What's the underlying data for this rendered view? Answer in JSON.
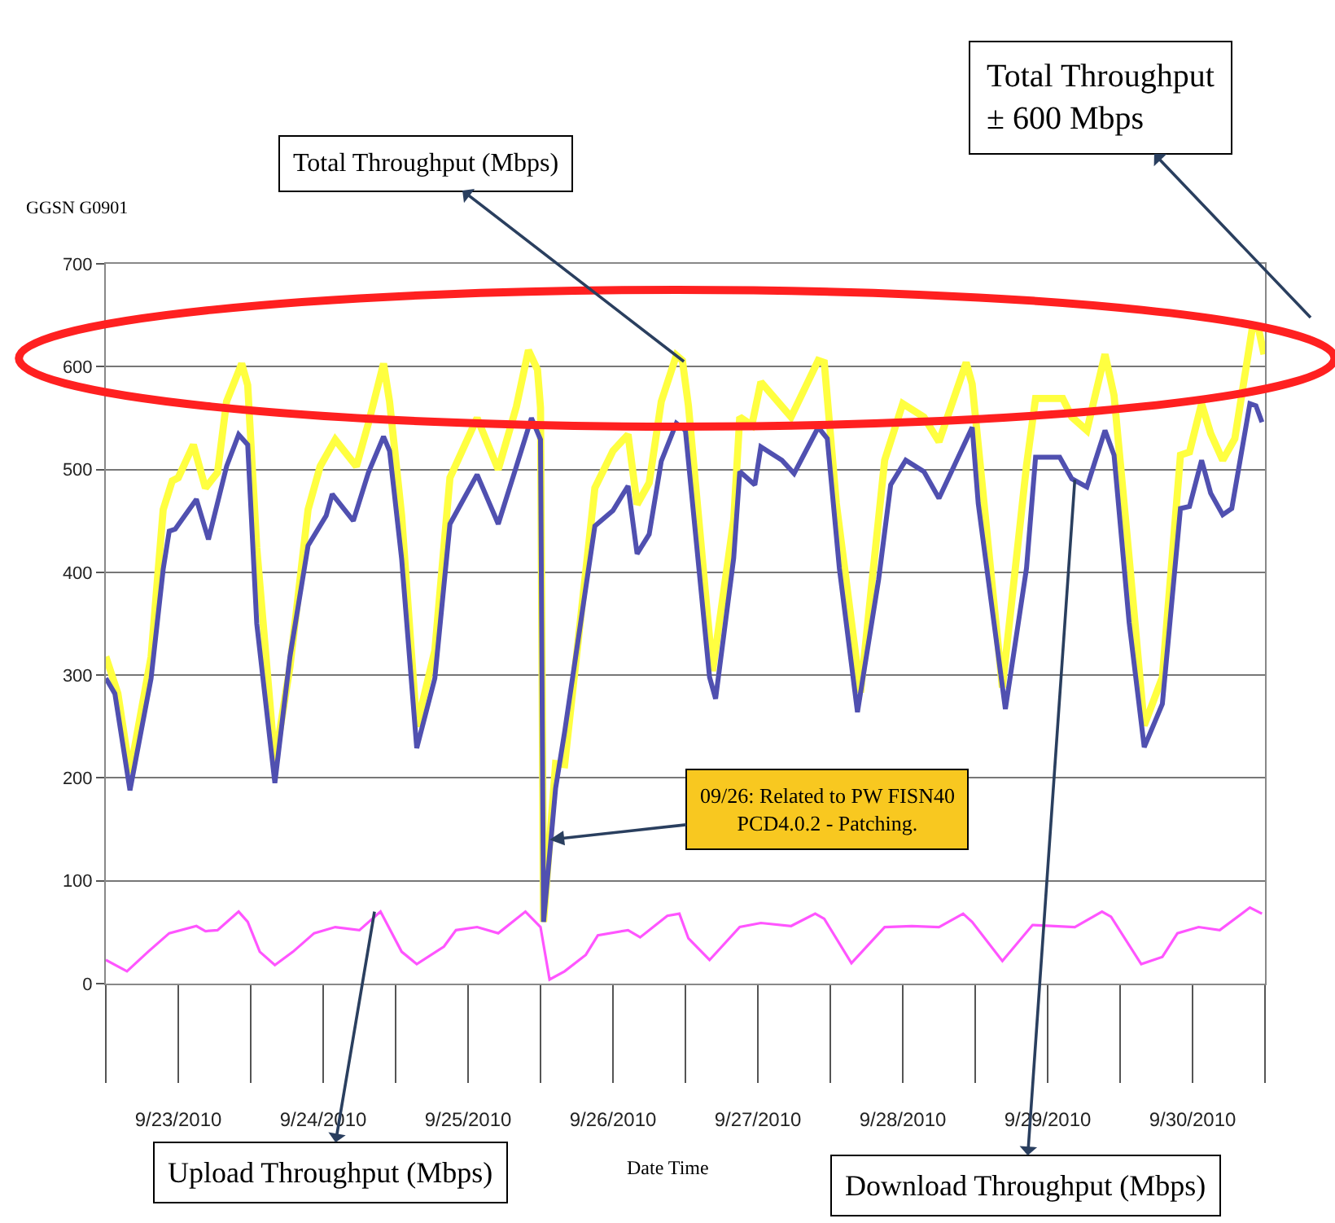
{
  "chart_data": {
    "type": "line",
    "title": "GGSN G0901",
    "xlabel": "Date Time",
    "xlim": [
      "2010-09-23T00:00",
      "2010-10-01T00:00"
    ],
    "ylim": [
      0,
      700
    ],
    "yticks": [
      0,
      100,
      200,
      300,
      400,
      500,
      600,
      700
    ],
    "grid": "y",
    "xticks": [
      {
        "value": "2010-09-23T12:00",
        "label": "9/23/2010"
      },
      {
        "value": "2010-09-24T12:00",
        "label": "9/24/2010"
      },
      {
        "value": "2010-09-25T12:00",
        "label": "9/25/2010"
      },
      {
        "value": "2010-09-26T12:00",
        "label": "9/26/2010"
      },
      {
        "value": "2010-09-27T12:00",
        "label": "9/27/2010"
      },
      {
        "value": "2010-09-28T12:00",
        "label": "9/28/2010"
      },
      {
        "value": "2010-09-29T12:00",
        "label": "9/29/2010"
      },
      {
        "value": "2010-09-30T12:00",
        "label": "9/30/2010"
      }
    ],
    "series": [
      {
        "color": "#ffff40",
        "x": [
          "2010-09-23T00:00",
          "2010-09-23T02:00",
          "2010-09-23T04:00",
          "2010-09-23T07:30",
          "2010-09-23T09:30",
          "2010-09-23T11:00",
          "2010-09-23T12:00",
          "2010-09-23T14:30",
          "2010-09-23T16:30",
          "2010-09-23T18:30",
          "2010-09-23T20:00",
          "2010-09-23T22:30",
          "2010-09-23T23:30",
          "2010-09-24T01:00",
          "2010-09-24T04:00",
          "2010-09-24T06:30",
          "2010-09-24T09:30",
          "2010-09-24T11:30",
          "2010-09-24T14:00",
          "2010-09-24T17:30",
          "2010-09-24T19:30",
          "2010-09-24T22:00",
          "2010-09-24T23:00",
          "2010-09-25T01:00",
          "2010-09-25T03:30",
          "2010-09-25T06:30",
          "2010-09-25T09:00",
          "2010-09-25T13:30",
          "2010-09-25T17:00",
          "2010-09-25T20:00",
          "2010-09-25T22:00",
          "2010-09-25T23:30",
          "2010-09-26T00:00",
          "2010-09-26T00:30",
          "2010-09-26T02:30",
          "2010-09-26T04:00",
          "2010-09-26T09:00",
          "2010-09-26T12:00",
          "2010-09-26T14:30",
          "2010-09-26T16:00",
          "2010-09-26T18:00",
          "2010-09-26T20:00",
          "2010-09-26T22:30",
          "2010-09-26T23:30",
          "2010-09-27T00:30",
          "2010-09-27T04:30",
          "2010-09-27T08:00",
          "2010-09-27T09:00",
          "2010-09-27T11:00",
          "2010-09-27T12:30",
          "2010-09-27T17:30",
          "2010-09-27T22:00",
          "2010-09-27T23:00",
          "2010-09-28T01:00",
          "2010-09-28T05:00",
          "2010-09-28T09:00",
          "2010-09-28T12:00",
          "2010-09-28T15:30",
          "2010-09-28T18:00",
          "2010-09-28T22:30",
          "2010-09-28T23:30",
          "2010-09-29T04:30",
          "2010-09-29T08:30",
          "2010-09-29T10:00",
          "2010-09-29T14:30",
          "2010-09-29T16:00",
          "2010-09-29T18:30",
          "2010-09-29T21:30",
          "2010-09-29T23:00",
          "2010-09-30T01:30",
          "2010-09-30T04:00",
          "2010-09-30T07:00",
          "2010-09-30T10:00",
          "2010-09-30T11:30",
          "2010-09-30T13:30",
          "2010-09-30T15:00",
          "2010-09-30T17:00",
          "2010-09-30T19:00",
          "2010-09-30T22:00",
          "2010-09-30T23:00",
          "2010-09-30T23:50"
        ],
        "values": [
          318,
          282,
          205,
          318,
          461,
          489,
          492,
          524,
          482,
          497,
          566,
          603,
          582,
          424,
          216,
          308,
          461,
          503,
          529,
          503,
          545,
          603,
          566,
          455,
          250,
          324,
          492,
          550,
          500,
          561,
          616,
          597,
          560,
          60,
          214,
          213,
          482,
          518,
          534,
          466,
          487,
          566,
          611,
          606,
          562,
          304,
          451,
          551,
          543,
          585,
          551,
          606,
          604,
          467,
          283,
          509,
          564,
          551,
          527,
          604,
          583,
          288,
          504,
          569,
          569,
          551,
          538,
          612,
          572,
          414,
          251,
          298,
          514,
          517,
          564,
          535,
          509,
          530,
          641,
          635,
          612
        ]
      },
      {
        "color": "#5050b0",
        "x": [
          "2010-09-23T00:00",
          "2010-09-23T01:30",
          "2010-09-23T04:00",
          "2010-09-23T07:30",
          "2010-09-23T09:30",
          "2010-09-23T10:30",
          "2010-09-23T11:30",
          "2010-09-23T15:00",
          "2010-09-23T17:00",
          "2010-09-23T20:00",
          "2010-09-23T22:00",
          "2010-09-23T23:30",
          "2010-09-24T01:00",
          "2010-09-24T04:00",
          "2010-09-24T06:30",
          "2010-09-24T09:30",
          "2010-09-24T12:30",
          "2010-09-24T13:30",
          "2010-09-24T17:00",
          "2010-09-24T19:30",
          "2010-09-24T22:00",
          "2010-09-24T23:00",
          "2010-09-25T01:00",
          "2010-09-25T03:30",
          "2010-09-25T06:30",
          "2010-09-25T09:00",
          "2010-09-25T13:30",
          "2010-09-25T17:00",
          "2010-09-25T20:00",
          "2010-09-25T22:30",
          "2010-09-26T00:00",
          "2010-09-26T00:30",
          "2010-09-26T02:30",
          "2010-09-26T04:00",
          "2010-09-26T09:00",
          "2010-09-26T12:00",
          "2010-09-26T14:30",
          "2010-09-26T16:00",
          "2010-09-26T18:00",
          "2010-09-26T20:00",
          "2010-09-26T22:30",
          "2010-09-27T00:00",
          "2010-09-27T04:00",
          "2010-09-27T05:00",
          "2010-09-27T08:00",
          "2010-09-27T09:00",
          "2010-09-27T11:30",
          "2010-09-27T12:30",
          "2010-09-27T16:00",
          "2010-09-27T18:00",
          "2010-09-27T22:00",
          "2010-09-27T23:30",
          "2010-09-28T01:30",
          "2010-09-28T04:30",
          "2010-09-28T08:00",
          "2010-09-28T10:00",
          "2010-09-28T12:30",
          "2010-09-28T15:30",
          "2010-09-28T18:00",
          "2010-09-28T23:30",
          "2010-09-29T00:30",
          "2010-09-29T05:00",
          "2010-09-29T08:30",
          "2010-09-29T10:00",
          "2010-09-29T14:00",
          "2010-09-29T16:00",
          "2010-09-29T18:30",
          "2010-09-29T21:30",
          "2010-09-29T23:00",
          "2010-09-30T01:30",
          "2010-09-30T04:00",
          "2010-09-30T07:00",
          "2010-09-30T10:00",
          "2010-09-30T11:30",
          "2010-09-30T13:30",
          "2010-09-30T15:00",
          "2010-09-30T17:00",
          "2010-09-30T18:30",
          "2010-09-30T21:30",
          "2010-09-30T22:30",
          "2010-09-30T23:30"
        ],
        "values": [
          297,
          282,
          188,
          297,
          403,
          440,
          442,
          471,
          432,
          503,
          534,
          524,
          350,
          195,
          318,
          426,
          455,
          476,
          450,
          497,
          532,
          518,
          413,
          229,
          297,
          447,
          495,
          447,
          503,
          550,
          529,
          60,
          190,
          245,
          445,
          460,
          484,
          418,
          437,
          508,
          545,
          538,
          298,
          277,
          414,
          498,
          485,
          522,
          509,
          496,
          541,
          530,
          404,
          264,
          393,
          485,
          509,
          498,
          472,
          541,
          467,
          267,
          404,
          512,
          512,
          491,
          483,
          538,
          514,
          351,
          230,
          272,
          462,
          464,
          509,
          477,
          456,
          462,
          564,
          562,
          546
        ]
      },
      {
        "color": "#ff55ff",
        "x": [
          "2010-09-23T00:00",
          "2010-09-23T03:30",
          "2010-09-23T07:00",
          "2010-09-23T10:30",
          "2010-09-23T15:00",
          "2010-09-23T16:30",
          "2010-09-23T18:30",
          "2010-09-23T22:00",
          "2010-09-23T23:30",
          "2010-09-24T01:30",
          "2010-09-24T04:00",
          "2010-09-24T07:00",
          "2010-09-24T10:30",
          "2010-09-24T14:00",
          "2010-09-24T18:00",
          "2010-09-24T21:30",
          "2010-09-25T01:00",
          "2010-09-25T03:30",
          "2010-09-25T08:00",
          "2010-09-25T10:00",
          "2010-09-25T13:30",
          "2010-09-25T17:00",
          "2010-09-25T21:30",
          "2010-09-26T00:00",
          "2010-09-26T01:30",
          "2010-09-26T04:00",
          "2010-09-26T07:30",
          "2010-09-26T09:30",
          "2010-09-26T14:30",
          "2010-09-26T16:30",
          "2010-09-26T21:00",
          "2010-09-26T23:00",
          "2010-09-27T00:30",
          "2010-09-27T04:00",
          "2010-09-27T09:00",
          "2010-09-27T12:30",
          "2010-09-27T17:30",
          "2010-09-27T21:30",
          "2010-09-27T23:00",
          "2010-09-28T03:30",
          "2010-09-28T09:00",
          "2010-09-28T13:30",
          "2010-09-28T18:00",
          "2010-09-28T22:00",
          "2010-09-28T23:30",
          "2010-09-29T04:30",
          "2010-09-29T09:30",
          "2010-09-29T16:30",
          "2010-09-29T21:00",
          "2010-09-29T22:30",
          "2010-09-30T03:30",
          "2010-09-30T07:00",
          "2010-09-30T09:30",
          "2010-09-30T13:00",
          "2010-09-30T16:30",
          "2010-09-30T21:30",
          "2010-09-30T23:30"
        ],
        "values": [
          23,
          12,
          31,
          49,
          56,
          51,
          52,
          70,
          60,
          31,
          18,
          31,
          49,
          55,
          52,
          70,
          31,
          19,
          36,
          52,
          55,
          49,
          70,
          55,
          4,
          12,
          28,
          47,
          52,
          45,
          66,
          68,
          44,
          23,
          55,
          59,
          56,
          68,
          63,
          20,
          55,
          56,
          55,
          68,
          60,
          22,
          57,
          55,
          70,
          65,
          19,
          26,
          49,
          55,
          52,
          74,
          68
        ]
      }
    ],
    "annotations": [
      {
        "text": "Total Throughput (Mbps)",
        "x": "2010-09-26T23:45",
        "y": 605
      },
      "Total Throughput\n± 600 Mbps",
      {
        "text": "Upload Throughput (Mbps)",
        "x": "2010-09-24T20:30",
        "y": 70
      },
      {
        "text": "Download Throughput (Mbps)",
        "x": "2010-09-29T16:30",
        "y": 490
      },
      {
        "text": "09/26: Related to PW FISN40\nPCD4.0.2 - Patching.",
        "x": "2010-09-26T01:30",
        "y": 140
      }
    ]
  }
}
